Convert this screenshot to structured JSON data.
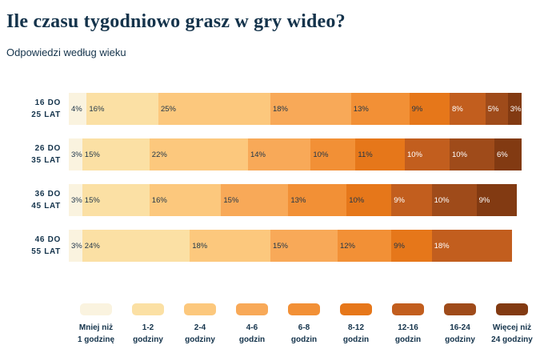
{
  "chart_data": {
    "type": "bar",
    "stacked": true,
    "orientation": "horizontal",
    "unit": "%",
    "title": "Ile czasu tygodniowo grasz w gry wideo?",
    "subtitle": "Odpowiedzi według wieku",
    "categories": [
      "16 do 25 lat",
      "26 do 35 lat",
      "36 do 45 lat",
      "46 do 55 lat"
    ],
    "category_label_lines": [
      [
        "16 DO",
        "25 LAT"
      ],
      [
        "26 DO",
        "35 LAT"
      ],
      [
        "36 DO",
        "45 LAT"
      ],
      [
        "46 DO",
        "55 LAT"
      ]
    ],
    "series": [
      {
        "name": "Mniej niż 1 godzinę",
        "legend_lines": [
          "Mniej niż",
          "1 godzinę"
        ],
        "color": "#FAF3DF",
        "values": [
          4,
          3,
          3,
          3
        ]
      },
      {
        "name": "1-2 godziny",
        "legend_lines": [
          "1-2",
          "godziny"
        ],
        "color": "#FBE0A4",
        "values": [
          16,
          15,
          15,
          24
        ]
      },
      {
        "name": "2-4 godziny",
        "legend_lines": [
          "2-4",
          "godziny"
        ],
        "color": "#FCC87D",
        "values": [
          25,
          22,
          16,
          18
        ]
      },
      {
        "name": "4-6 godzin",
        "legend_lines": [
          "4-6",
          "godzin"
        ],
        "color": "#F8A958",
        "values": [
          18,
          14,
          15,
          15
        ]
      },
      {
        "name": "6-8 godzin",
        "legend_lines": [
          "6-8",
          "godzin"
        ],
        "color": "#F29036",
        "values": [
          13,
          10,
          13,
          12
        ]
      },
      {
        "name": "8-12 godzin",
        "legend_lines": [
          "8-12",
          "godzin"
        ],
        "color": "#E6771A",
        "values": [
          9,
          11,
          10,
          9
        ]
      },
      {
        "name": "12-16 godzin",
        "legend_lines": [
          "12-16",
          "godzin"
        ],
        "color": "#C25E1E",
        "values": [
          8,
          10,
          9,
          18
        ]
      },
      {
        "name": "16-24 godziny",
        "legend_lines": [
          "16-24",
          "godziny"
        ],
        "color": "#9F4B1A",
        "values": [
          5,
          10,
          10,
          0
        ]
      },
      {
        "name": "Więcej niż 24 godziny",
        "legend_lines": [
          "Więcej niż",
          "24 godziny"
        ],
        "color": "#823A12",
        "values": [
          3,
          6,
          9,
          0
        ]
      }
    ],
    "text_colors": {
      "dark": "#1E3448",
      "light": "#FFFFFF"
    },
    "legend_position": "bottom",
    "grid": false,
    "xlim": [
      0,
      101
    ]
  }
}
